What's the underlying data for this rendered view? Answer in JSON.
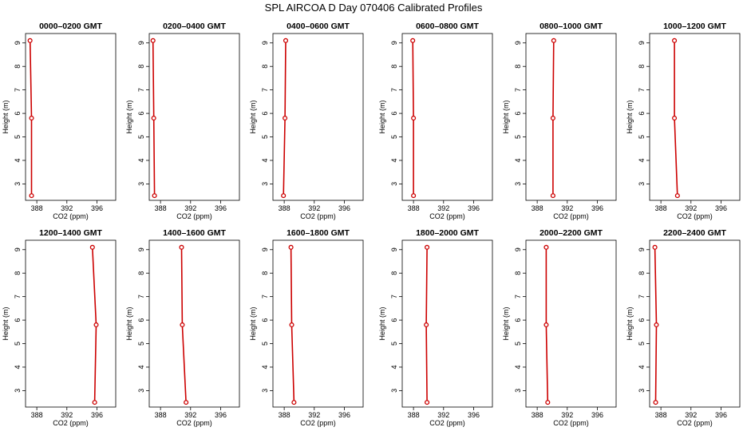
{
  "figure": {
    "title": "SPL AIRCOA D  Day 070406  Calibrated Profiles"
  },
  "chart_data": {
    "type": "line",
    "xlabel": "CO2 (ppm)",
    "ylabel": "Height (m)",
    "xlim": [
      386.5,
      398.5
    ],
    "ylim": [
      2.3,
      9.4
    ],
    "xticks": [
      388,
      392,
      396
    ],
    "yticks": [
      3,
      4,
      5,
      6,
      7,
      8,
      9
    ],
    "line_color": "#cc0000",
    "panels": [
      {
        "title": "0000–0200 GMT",
        "points": [
          {
            "x": 387.1,
            "y": 9.1
          },
          {
            "x": 387.3,
            "y": 5.8
          },
          {
            "x": 387.3,
            "y": 2.5
          }
        ]
      },
      {
        "title": "0200–0400 GMT",
        "points": [
          {
            "x": 387.0,
            "y": 9.1
          },
          {
            "x": 387.1,
            "y": 5.8
          },
          {
            "x": 387.2,
            "y": 2.5
          }
        ]
      },
      {
        "title": "0400–0600 GMT",
        "points": [
          {
            "x": 388.2,
            "y": 9.1
          },
          {
            "x": 388.1,
            "y": 5.8
          },
          {
            "x": 387.9,
            "y": 2.5
          }
        ]
      },
      {
        "title": "0600–0800 GMT",
        "points": [
          {
            "x": 387.9,
            "y": 9.1
          },
          {
            "x": 388.0,
            "y": 5.8
          },
          {
            "x": 388.0,
            "y": 2.5
          }
        ]
      },
      {
        "title": "0800–1000 GMT",
        "points": [
          {
            "x": 390.2,
            "y": 9.1
          },
          {
            "x": 390.1,
            "y": 5.8
          },
          {
            "x": 390.1,
            "y": 2.5
          }
        ]
      },
      {
        "title": "1000–1200 GMT",
        "points": [
          {
            "x": 389.8,
            "y": 9.1
          },
          {
            "x": 389.8,
            "y": 5.8
          },
          {
            "x": 390.2,
            "y": 2.5
          }
        ]
      },
      {
        "title": "1200–1400 GMT",
        "points": [
          {
            "x": 395.4,
            "y": 9.1
          },
          {
            "x": 395.9,
            "y": 5.8
          },
          {
            "x": 395.7,
            "y": 2.5
          }
        ]
      },
      {
        "title": "1400–1600 GMT",
        "points": [
          {
            "x": 390.8,
            "y": 9.1
          },
          {
            "x": 390.9,
            "y": 5.8
          },
          {
            "x": 391.4,
            "y": 2.5
          }
        ]
      },
      {
        "title": "1600–1800 GMT",
        "points": [
          {
            "x": 388.9,
            "y": 9.1
          },
          {
            "x": 389.0,
            "y": 5.8
          },
          {
            "x": 389.3,
            "y": 2.5
          }
        ]
      },
      {
        "title": "1800–2000 GMT",
        "points": [
          {
            "x": 389.8,
            "y": 9.1
          },
          {
            "x": 389.7,
            "y": 5.8
          },
          {
            "x": 389.8,
            "y": 2.5
          }
        ]
      },
      {
        "title": "2000–2200 GMT",
        "points": [
          {
            "x": 389.2,
            "y": 9.1
          },
          {
            "x": 389.2,
            "y": 5.8
          },
          {
            "x": 389.4,
            "y": 2.5
          }
        ]
      },
      {
        "title": "2200–2400 GMT",
        "points": [
          {
            "x": 387.2,
            "y": 9.1
          },
          {
            "x": 387.4,
            "y": 5.8
          },
          {
            "x": 387.3,
            "y": 2.5
          }
        ]
      }
    ]
  }
}
